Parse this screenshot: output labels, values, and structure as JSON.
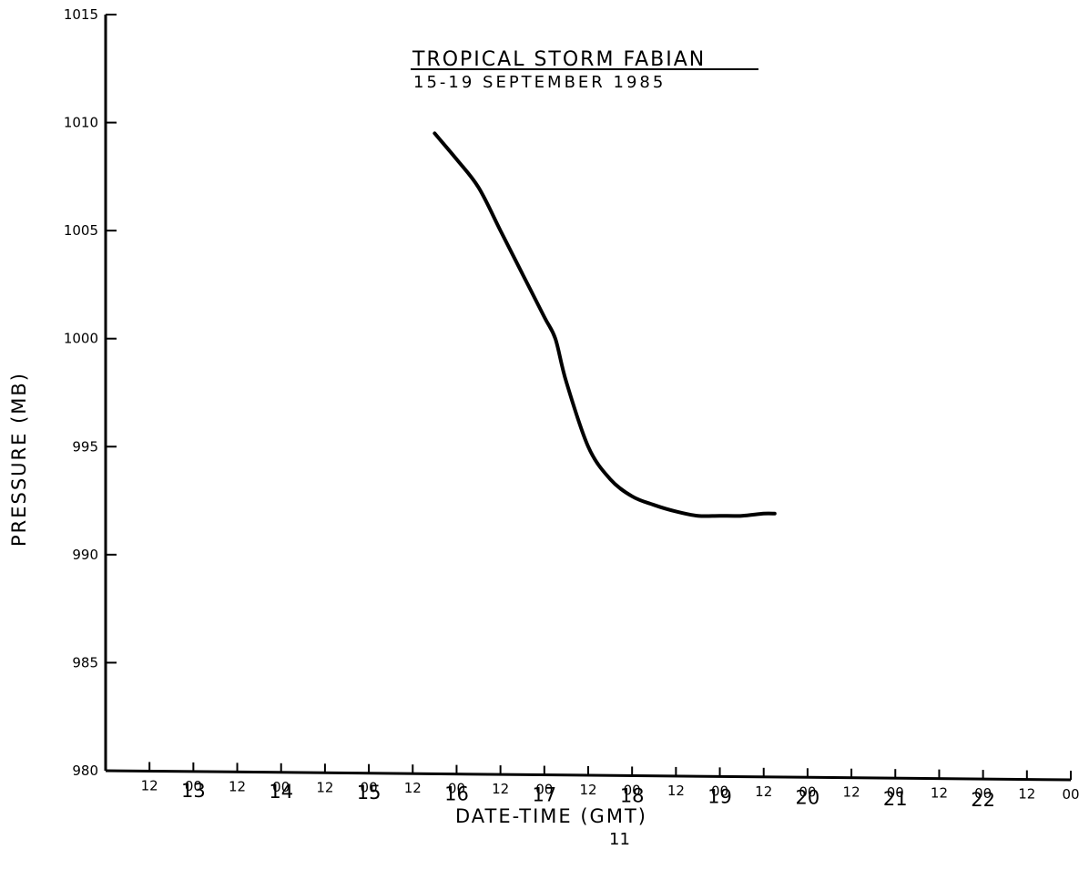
{
  "chart_data": {
    "type": "line",
    "title": "TROPICAL STORM FABIAN",
    "subtitle": "15-19 SEPTEMBER 1985",
    "xlabel": "DATE-TIME (GMT)",
    "ylabel": "PRESSURE (MB)",
    "ylim": [
      980,
      1015
    ],
    "yticks": [
      "980",
      "985",
      "990",
      "995",
      "1000",
      "1005",
      "1010",
      "1015"
    ],
    "x_hours_label": [
      "12",
      "00",
      "12",
      "00",
      "12",
      "00",
      "12",
      "00",
      "12",
      "00",
      "12",
      "00",
      "12",
      "00",
      "12",
      "00",
      "12",
      "00",
      "12",
      "00",
      "12",
      "00"
    ],
    "x_days": [
      "13",
      "14",
      "15",
      "16",
      "17",
      "18",
      "19",
      "20",
      "21",
      "22"
    ],
    "grid": false,
    "series": [
      {
        "x": [
          "15/18",
          "16/00",
          "16/06",
          "16/12",
          "16/18",
          "17/00",
          "17/03",
          "17/06",
          "17/12",
          "17/18",
          "18/00",
          "18/06",
          "18/12",
          "18/18",
          "19/00",
          "19/06",
          "19/12",
          "19/15"
        ],
        "y": [
          1009.5,
          1008.3,
          1007.0,
          1005.0,
          1003.0,
          1001.0,
          1000.0,
          998.0,
          995.0,
          993.5,
          992.7,
          992.3,
          992.0,
          991.8,
          991.8,
          991.8,
          991.9,
          991.9
        ]
      }
    ]
  },
  "page_number": "11"
}
